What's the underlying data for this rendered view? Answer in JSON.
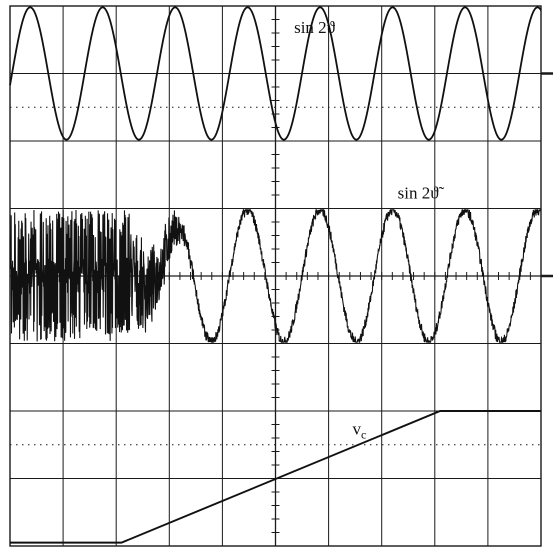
{
  "chart_data": {
    "type": "line",
    "title": "",
    "xlabel": "",
    "ylabel": "",
    "grid": true,
    "x_divisions": 10,
    "y_divisions": 8,
    "xlim": [
      0,
      10
    ],
    "ylim": [
      0,
      8
    ],
    "colors": {
      "trace": "#111111",
      "grid": "#1a1a1a",
      "background": "#ffffff"
    },
    "series": [
      {
        "label": "sin 2ϑ",
        "label_text": "sin 2ϑ",
        "label_anchor": [
          5.35,
          7.6
        ],
        "kind": "sine",
        "x_start": 0.0,
        "x_end": 10.0,
        "center": 7.0,
        "amplitude": 0.98,
        "period": 1.365,
        "phase_x": 0.38
      },
      {
        "label": "sin 2ϑ̃",
        "label_text": "sin 2ϑ̃",
        "label_anchor": [
          7.3,
          5.15
        ],
        "kind": "estimated",
        "x_start": 0.0,
        "x_end": 10.0,
        "center": 4.0,
        "amplitude": 0.98,
        "period": 1.365,
        "phase_x": 0.38,
        "lock_x": 3.5
      },
      {
        "label": "vc",
        "label_text": "v",
        "label_sub": "c",
        "label_anchor": [
          6.45,
          1.65
        ],
        "kind": "polyline",
        "points": [
          [
            0.0,
            0.05
          ],
          [
            2.1,
            0.05
          ],
          [
            8.1,
            2.0
          ],
          [
            10.0,
            2.0
          ]
        ]
      }
    ]
  }
}
